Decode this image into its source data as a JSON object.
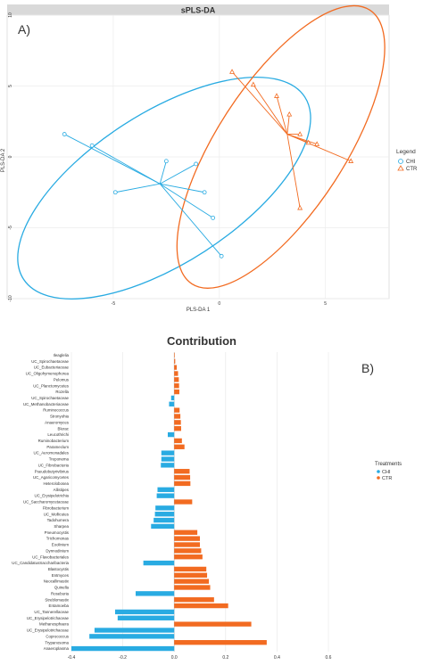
{
  "chart_data": [
    {
      "type": "scatter",
      "panel_label": "A)",
      "title": "sPLS-DA",
      "xlabel": "PLS-DA 1",
      "ylabel": "PLS-DA 2",
      "xlim": [
        -10,
        8
      ],
      "ylim": [
        -10,
        10
      ],
      "xticks": [
        "-5",
        "0",
        "5"
      ],
      "yticks": [
        "-10",
        "-5",
        "0",
        "5",
        "10"
      ],
      "legend": {
        "title": "Legend",
        "position": "right",
        "entries": [
          "CHI",
          "CTR"
        ]
      },
      "series": [
        {
          "name": "CHI",
          "color": "#29abe2",
          "marker": "circle",
          "centroid": [
            -2.8,
            -1.9
          ],
          "points": [
            [
              -7.3,
              1.6
            ],
            [
              -6.0,
              0.8
            ],
            [
              -4.9,
              -2.5
            ],
            [
              -2.5,
              -0.3
            ],
            [
              -1.1,
              -0.5
            ],
            [
              -0.7,
              -2.5
            ],
            [
              -0.3,
              -4.3
            ],
            [
              0.1,
              -7.0
            ]
          ],
          "ellipse": {
            "center": [
              -2.6,
              -2.2
            ],
            "rx": 7.9,
            "ry": 5.3,
            "angle_deg": -33
          }
        },
        {
          "name": "CTR",
          "color": "#f26b21",
          "marker": "triangle",
          "centroid": [
            3.2,
            1.6
          ],
          "points": [
            [
              0.6,
              6.0
            ],
            [
              1.6,
              5.1
            ],
            [
              2.7,
              4.3
            ],
            [
              3.3,
              3.0
            ],
            [
              3.8,
              1.6
            ],
            [
              4.2,
              1.0
            ],
            [
              4.6,
              0.9
            ],
            [
              6.2,
              -0.3
            ],
            [
              3.8,
              -3.6
            ]
          ],
          "ellipse": {
            "center": [
              2.9,
              0.7
            ],
            "rx": 7.7,
            "ry": 4.5,
            "angle_deg": -57
          }
        }
      ]
    },
    {
      "type": "bar",
      "orientation": "horizontal",
      "panel_label": "B)",
      "title": "Contribution",
      "xlim": [
        -0.4,
        0.6
      ],
      "xticks": [
        "-0.4",
        "-0.2",
        "0.0",
        "0.2",
        "0.4",
        "0.6"
      ],
      "legend": {
        "title": "Treatments",
        "position": "right",
        "entries": [
          "CHI",
          "CTR"
        ]
      },
      "colors": {
        "CHI": "#29abe2",
        "CTR": "#f26b21"
      },
      "bars": [
        {
          "label": "Ileaglelia",
          "value": 0.002,
          "group": "CTR"
        },
        {
          "label": "UC_Spirochaetaceae",
          "value": 0.004,
          "group": "CTR"
        },
        {
          "label": "UC_Eubacteriaceae",
          "value": 0.01,
          "group": "CTR"
        },
        {
          "label": "UC_Oligohymenophorea",
          "value": 0.015,
          "group": "CTR"
        },
        {
          "label": "Pelomus",
          "value": 0.018,
          "group": "CTR"
        },
        {
          "label": "UC_Planctomycetes",
          "value": 0.019,
          "group": "CTR"
        },
        {
          "label": "Rozella",
          "value": 0.02,
          "group": "CTR"
        },
        {
          "label": "UC_Spirochaetaceae",
          "value": -0.012,
          "group": "CHI"
        },
        {
          "label": "UC_Methanobacteriaceae",
          "value": -0.02,
          "group": "CHI"
        },
        {
          "label": "Ruminococcus",
          "value": 0.021,
          "group": "CTR"
        },
        {
          "label": "Stronyohia",
          "value": 0.024,
          "group": "CTR"
        },
        {
          "label": "Anaeromyces",
          "value": 0.026,
          "group": "CTR"
        },
        {
          "label": "Blerac",
          "value": 0.027,
          "group": "CTR"
        },
        {
          "label": "Leucothrichi",
          "value": -0.025,
          "group": "CHI"
        },
        {
          "label": "Ruminobacterium",
          "value": 0.03,
          "group": "CTR"
        },
        {
          "label": "Parameclum",
          "value": 0.04,
          "group": "CTR"
        },
        {
          "label": "UC_Aeromonadales",
          "value": -0.05,
          "group": "CHI"
        },
        {
          "label": "Treponema",
          "value": -0.05,
          "group": "CHI"
        },
        {
          "label": "UC_Fibrobacteria",
          "value": -0.052,
          "group": "CHI"
        },
        {
          "label": "Pseudobutyrivibrius",
          "value": 0.06,
          "group": "CTR"
        },
        {
          "label": "UC_Agaricomycetes",
          "value": 0.062,
          "group": "CTR"
        },
        {
          "label": "Heterolobosea",
          "value": 0.063,
          "group": "CTR"
        },
        {
          "label": "Allistipes",
          "value": -0.065,
          "group": "CHI"
        },
        {
          "label": "UC_Erysipelotrichia",
          "value": -0.068,
          "group": "CHI"
        },
        {
          "label": "UC_Saccharomycetaceae",
          "value": 0.07,
          "group": "CTR"
        },
        {
          "label": "Fibrobacterium",
          "value": -0.073,
          "group": "CHI"
        },
        {
          "label": "UC_Mollicutes",
          "value": -0.075,
          "group": "CHI"
        },
        {
          "label": "Tadohumera",
          "value": -0.08,
          "group": "CHI"
        },
        {
          "label": "Sharpea",
          "value": -0.09,
          "group": "CHI"
        },
        {
          "label": "Pneumocystis",
          "value": 0.09,
          "group": "CTR"
        },
        {
          "label": "Trichomonas",
          "value": 0.1,
          "group": "CTR"
        },
        {
          "label": "Eoolinium",
          "value": 0.1,
          "group": "CTR"
        },
        {
          "label": "Dynnodinium",
          "value": 0.105,
          "group": "CTR"
        },
        {
          "label": "UC_Flavobacteriales",
          "value": 0.11,
          "group": "CTR"
        },
        {
          "label": "UC_CandidatusSaccharibacteria",
          "value": -0.12,
          "group": "CHI"
        },
        {
          "label": "Blastocystis",
          "value": 0.125,
          "group": "CTR"
        },
        {
          "label": "Entmyces",
          "value": 0.128,
          "group": "CTR"
        },
        {
          "label": "Neocallimastix",
          "value": 0.135,
          "group": "CTR"
        },
        {
          "label": "Quinella",
          "value": 0.14,
          "group": "CTR"
        },
        {
          "label": "Roseburia",
          "value": -0.15,
          "group": "CHI"
        },
        {
          "label": "Streblomastix",
          "value": 0.155,
          "group": "CTR"
        },
        {
          "label": "Entamoeba",
          "value": 0.21,
          "group": "CTR"
        },
        {
          "label": "UC_Tannerellaceae",
          "value": -0.23,
          "group": "CHI"
        },
        {
          "label": "UC_Erysipelotrichaceae",
          "value": -0.22,
          "group": "CHI"
        },
        {
          "label": "Methanosphaera",
          "value": 0.3,
          "group": "CTR"
        },
        {
          "label": "UC_Erysipelotrichaceae",
          "value": -0.31,
          "group": "CHI"
        },
        {
          "label": "Coprococcus",
          "value": -0.33,
          "group": "CHI"
        },
        {
          "label": "Trypanosoma",
          "value": 0.36,
          "group": "CTR"
        },
        {
          "label": "Anaeroplasma",
          "value": -0.4,
          "group": "CHI"
        }
      ]
    }
  ]
}
